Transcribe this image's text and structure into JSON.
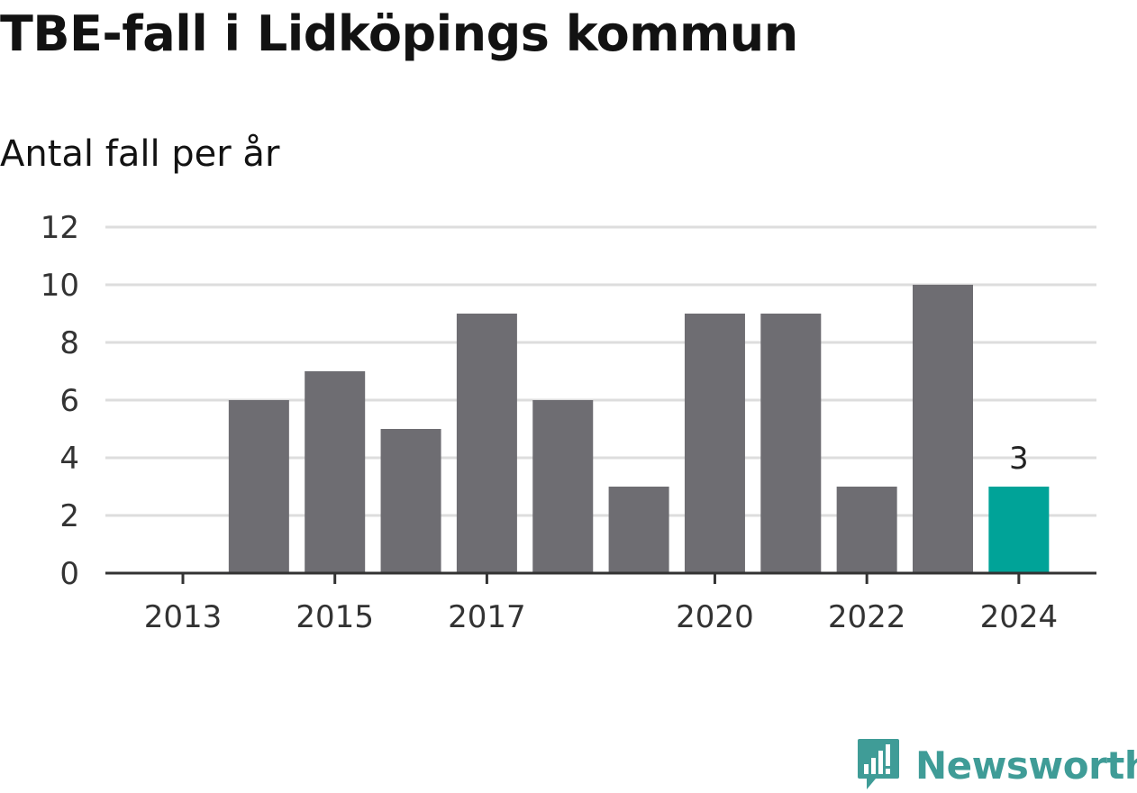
{
  "chart_data": {
    "type": "bar",
    "title": "TBE-fall i Lidköpings kommun",
    "subtitle": "Antal fall per år",
    "categories": [
      2013,
      2014,
      2015,
      2016,
      2017,
      2018,
      2019,
      2020,
      2021,
      2022,
      2023,
      2024
    ],
    "values": [
      0,
      6,
      7,
      5,
      9,
      6,
      3,
      9,
      9,
      3,
      10,
      3
    ],
    "highlight_category": 2024,
    "highlight_label": "3",
    "x_tick_labels": [
      "2013",
      "2015",
      "2017",
      "2020",
      "2022",
      "2024"
    ],
    "y_ticks": [
      0,
      2,
      4,
      6,
      8,
      10,
      12
    ],
    "ylim": [
      0,
      12
    ],
    "grid": "horizontal",
    "legend": "none",
    "colors": {
      "bar": "#6e6d72",
      "highlight": "#00a398",
      "grid": "#dddddd",
      "axis": "#333333"
    }
  },
  "brand": {
    "name": "Newsworthy",
    "icon": "newsworthy-logo-icon",
    "color": "#3f9c97"
  }
}
